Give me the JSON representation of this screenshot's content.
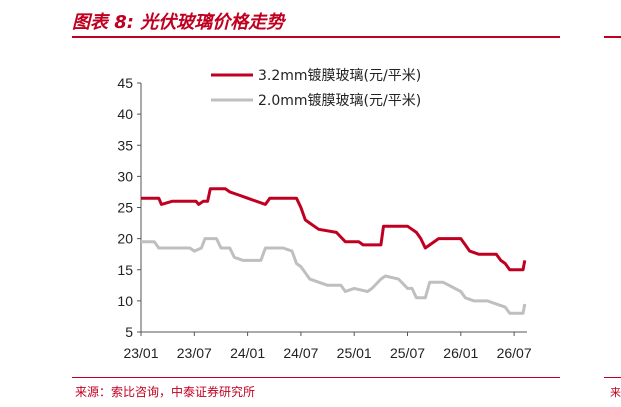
{
  "header": {
    "title": "图表 8:  光伏玻璃价格走势"
  },
  "footer": {
    "source": "来源：索比咨询，中泰证券研究所",
    "right_fragment": "来"
  },
  "chart_data": {
    "type": "line",
    "xlabel": "",
    "ylabel": "",
    "ylim": [
      5,
      45
    ],
    "yticks": [
      5,
      10,
      15,
      20,
      25,
      30,
      35,
      40,
      45
    ],
    "xticks": [
      "23/01",
      "23/07",
      "24/01",
      "24/07",
      "25/01",
      "25/07",
      "26/01",
      "26/07"
    ],
    "xlim": [
      0,
      43
    ],
    "grid": false,
    "legend_position": "top",
    "series": [
      {
        "name": "3.2mm镀膜玻璃(元/平米)",
        "color": "#c00020",
        "x": [
          0,
          2.0,
          2.3,
          3.5,
          6.2,
          6.5,
          7.0,
          7.5,
          7.8,
          9.5,
          10.0,
          11.0,
          12.0,
          14.0,
          14.5,
          17.5,
          18.0,
          18.5,
          19.0,
          19.5,
          20.0,
          22.0,
          23.0,
          24.5,
          25.0,
          26.0,
          27.0,
          27.3,
          30.0,
          30.5,
          31.0,
          31.5,
          32.0,
          33.5,
          36.0,
          36.5,
          37.0,
          38.0,
          40.0,
          40.5,
          41.0,
          41.5,
          43.0,
          43.2
        ],
        "y": [
          26.5,
          26.5,
          25.5,
          26,
          26,
          25.5,
          26,
          26,
          28,
          28,
          27.5,
          27,
          26.5,
          25.5,
          26.5,
          26.5,
          25,
          23,
          22.5,
          22,
          21.5,
          21,
          19.5,
          19.5,
          19,
          19,
          19,
          22,
          22,
          21.5,
          21,
          20,
          18.5,
          20,
          20,
          19,
          18,
          17.5,
          17.5,
          16.5,
          16,
          15,
          15,
          16.5
        ]
      },
      {
        "name": "2.0mm镀膜玻璃(元/平米)",
        "color": "#bfbfbf",
        "x": [
          0,
          1.5,
          2.0,
          5.5,
          6.0,
          6.8,
          7.2,
          8.5,
          9.0,
          10.0,
          10.5,
          11.5,
          12.0,
          13.5,
          14.0,
          16.0,
          17.0,
          17.5,
          18.0,
          19.0,
          20.0,
          21.0,
          22.5,
          23.0,
          24.0,
          25.5,
          26.0,
          27.0,
          27.5,
          29.0,
          30.0,
          30.5,
          31.0,
          32.0,
          32.5,
          34.0,
          36.0,
          36.5,
          37.5,
          39.0,
          40.0,
          41.0,
          41.5,
          43.0,
          43.2
        ],
        "y": [
          19.5,
          19.5,
          18.5,
          18.5,
          18,
          18.5,
          20,
          20,
          18.5,
          18.5,
          17,
          16.5,
          16.5,
          16.5,
          18.5,
          18.5,
          18,
          16,
          15.5,
          13.5,
          13,
          12.5,
          12.5,
          11.5,
          12,
          11.5,
          12,
          13.5,
          14,
          13.5,
          12,
          12,
          10.5,
          10.5,
          13,
          13,
          11.5,
          10.5,
          10,
          10,
          9.5,
          9,
          8,
          8,
          9.5
        ]
      }
    ]
  },
  "colors": {
    "accent": "#c00020",
    "axis": "#555555"
  }
}
